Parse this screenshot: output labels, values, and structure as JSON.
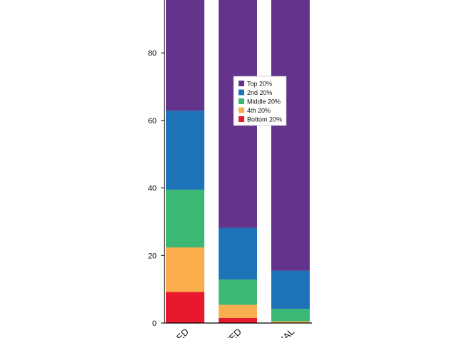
{
  "chart_data": {
    "type": "bar",
    "stacked": true,
    "categories": [
      "RED",
      "TED",
      "UAL"
    ],
    "series": [
      {
        "name": "Bottom 20%",
        "color": "#e8192c",
        "values": [
          9.2,
          1.5,
          0
        ]
      },
      {
        "name": "4th 20%",
        "color": "#f9ad4d",
        "values": [
          13.2,
          3.9,
          0.5
        ]
      },
      {
        "name": "Middle 20%",
        "color": "#3bb874",
        "values": [
          17.1,
          7.5,
          3.7
        ]
      },
      {
        "name": "2nd 20%",
        "color": "#1e73b9",
        "values": [
          23.4,
          15.3,
          11.3
        ]
      },
      {
        "name": "Top 20%",
        "color": "#64338c",
        "values": [
          37.1,
          71.8,
          84.5
        ]
      }
    ],
    "legend_order": [
      "Top 20%",
      "2nd 20%",
      "Middle 20%",
      "4th 20%",
      "Bottom 20%"
    ],
    "y_ticks": [
      "0",
      "20",
      "40",
      "60",
      "80"
    ],
    "ylim": [
      0,
      100
    ],
    "legend_position": "top-right",
    "grid": false
  }
}
